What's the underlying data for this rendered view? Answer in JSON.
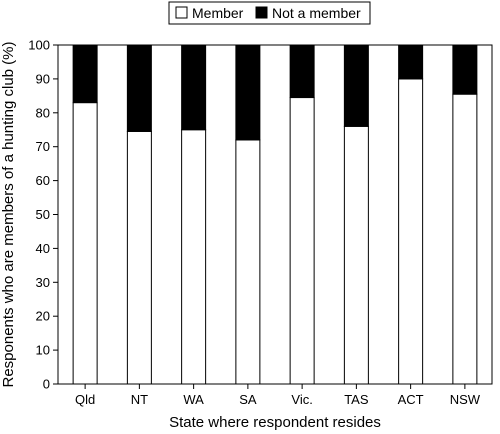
{
  "chart_data": {
    "type": "bar",
    "stacked": true,
    "xlabel": "State where respondent resides",
    "ylabel": "Responents who are members of a hunting club (%)",
    "ylim": [
      0,
      100
    ],
    "yticks": [
      0,
      10,
      20,
      30,
      40,
      50,
      60,
      70,
      80,
      90,
      100
    ],
    "categories": [
      "Qld",
      "NT",
      "WA",
      "SA",
      "Vic.",
      "TAS",
      "ACT",
      "NSW"
    ],
    "series": [
      {
        "name": "Member",
        "color": "#ffffff",
        "values": [
          83,
          74.5,
          75,
          72,
          84.5,
          76,
          90,
          85.5
        ]
      },
      {
        "name": "Not a member",
        "color": "#000000",
        "values": [
          17,
          25.5,
          25,
          28,
          15.5,
          24,
          10,
          14.5
        ]
      }
    ],
    "legend_position": "top",
    "grid": false
  }
}
